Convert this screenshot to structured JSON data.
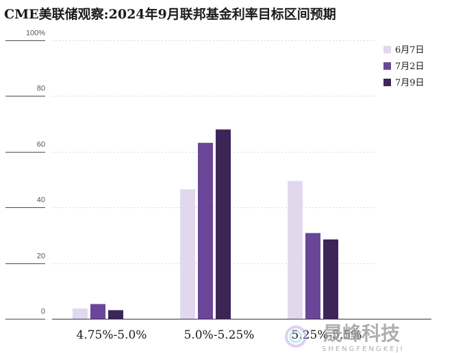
{
  "title": "CME美联储观察:2024年9月联邦基金利率目标区间预期",
  "chart_data": {
    "type": "bar",
    "categories": [
      "4.75%-5.0%",
      "5.0%-5.25%",
      "5.25%-5.5%"
    ],
    "series": [
      {
        "name": "6月7日",
        "color": "#e1d8ee",
        "values": [
          3.7,
          46.5,
          49.5
        ]
      },
      {
        "name": "7月2日",
        "color": "#6a4699",
        "values": [
          5.3,
          63.2,
          30.8
        ]
      },
      {
        "name": "7月9日",
        "color": "#3d2557",
        "values": [
          3.1,
          68.0,
          28.5
        ]
      }
    ],
    "y_ticks": [
      "0",
      "20",
      "40",
      "60",
      "80",
      "100%"
    ],
    "ylim": [
      0,
      100
    ],
    "grid": true,
    "legend": "top-right"
  },
  "watermark": {
    "text_cn": "晟峰科技",
    "text_en": "SHENGFENGKEJI"
  }
}
